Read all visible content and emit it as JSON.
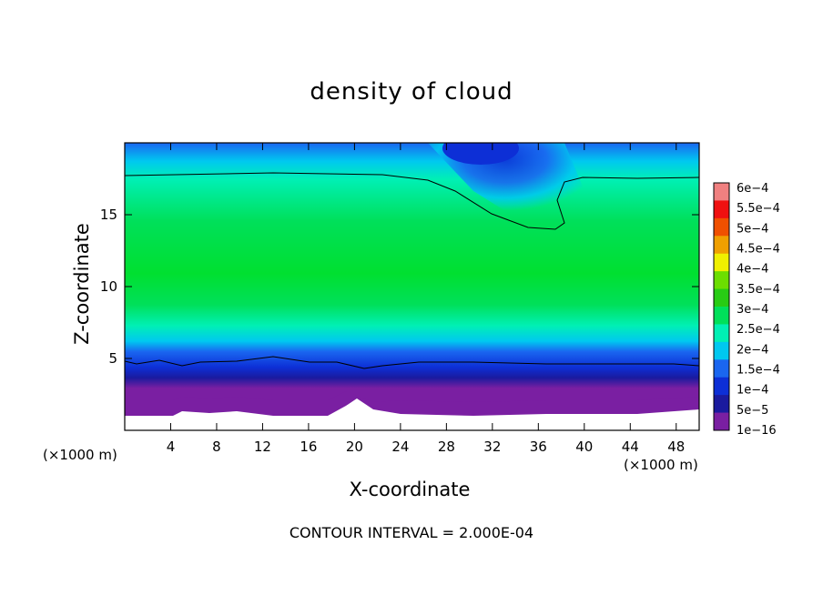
{
  "chart_data": {
    "type": "heatmap",
    "title": "density of cloud",
    "xlabel": "X-coordinate",
    "ylabel": "Z-coordinate",
    "x_unit": "(×1000 m)",
    "z_unit": "(×1000 m)",
    "xlim": [
      0,
      50
    ],
    "ylim": [
      0,
      20
    ],
    "x_ticks": [
      4,
      8,
      12,
      16,
      20,
      24,
      28,
      32,
      36,
      40,
      44,
      48
    ],
    "y_ticks": [
      5,
      10,
      15
    ],
    "colorbar": {
      "levels": [
        "1e−16",
        "5e−5",
        "1e−4",
        "1.5e−4",
        "2e−4",
        "2.5e−4",
        "3e−4",
        "3.5e−4",
        "4e−4",
        "4.5e−4",
        "5e−4",
        "5.5e−4",
        "6e−4"
      ],
      "colors": [
        "#7a1fa2",
        "#1a1a9e",
        "#0d2fd6",
        "#1a66f0",
        "#00c8f0",
        "#00f0b4",
        "#00e05a",
        "#28cc14",
        "#6cde00",
        "#f0f000",
        "#f0a000",
        "#f05000",
        "#f01010",
        "#f08080"
      ]
    },
    "features": {
      "contour_low_z": 4.8,
      "contour_high_z": 17.7,
      "contour_dip_min_z": 13.9,
      "contour_dip_x": 38
    },
    "footer": "CONTOUR INTERVAL = 2.000E-04"
  }
}
